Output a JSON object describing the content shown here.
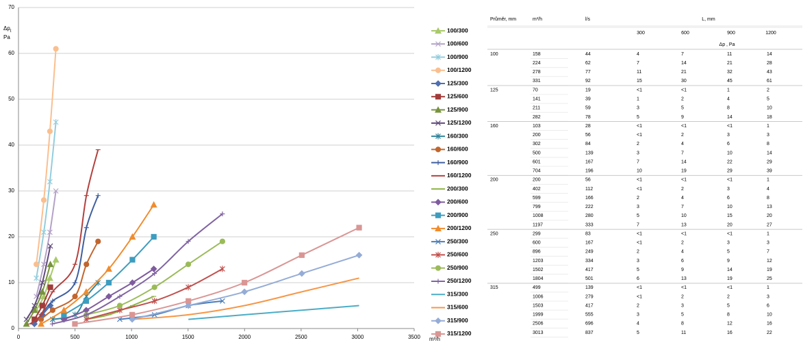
{
  "chart_data": {
    "type": "line",
    "smooth": true,
    "grid": true,
    "ylabel": "Δp",
    "ylabel_sub": "t",
    "ylabel_unit": "Pa",
    "xlabel": "m³/h",
    "xlim": [
      0,
      3500
    ],
    "xticks": [
      0,
      500,
      1000,
      1500,
      2000,
      2500,
      3000,
      3500
    ],
    "ylim": [
      0,
      70
    ],
    "yticks": [
      0,
      10,
      20,
      30,
      40,
      50,
      60,
      70
    ],
    "legend": "right",
    "series": [
      {
        "name": "100/300",
        "color": "#a9c96a",
        "marker": "triangle",
        "x": [
          158,
          224,
          278,
          331
        ],
        "values": [
          4,
          7,
          11,
          15
        ]
      },
      {
        "name": "100/600",
        "color": "#b3a2c7",
        "marker": "x",
        "x": [
          158,
          224,
          278,
          331
        ],
        "values": [
          7,
          14,
          21,
          30
        ]
      },
      {
        "name": "100/900",
        "color": "#93cddd",
        "marker": "star",
        "x": [
          158,
          224,
          278,
          331
        ],
        "values": [
          11,
          21,
          32,
          45
        ]
      },
      {
        "name": "100/1200",
        "color": "#fabf8f",
        "marker": "circle",
        "x": [
          158,
          224,
          278,
          331
        ],
        "values": [
          14,
          28,
          43,
          61
        ]
      },
      {
        "name": "125/300",
        "color": "#4f6fb0",
        "marker": "diamond",
        "x": [
          70,
          141,
          211,
          282
        ],
        "values": [
          null,
          1,
          3,
          5
        ]
      },
      {
        "name": "125/600",
        "color": "#a03c3a",
        "marker": "square",
        "x": [
          70,
          141,
          211,
          282
        ],
        "values": [
          null,
          2,
          5,
          9
        ]
      },
      {
        "name": "125/900",
        "color": "#77933c",
        "marker": "triangle",
        "x": [
          70,
          141,
          211,
          282
        ],
        "values": [
          1,
          4,
          8,
          14
        ]
      },
      {
        "name": "125/1200",
        "color": "#604a7b",
        "marker": "x",
        "x": [
          70,
          141,
          211,
          282
        ],
        "values": [
          2,
          5,
          10,
          18
        ]
      },
      {
        "name": "160/300",
        "color": "#31859c",
        "marker": "star",
        "x": [
          103,
          200,
          302,
          500,
          601,
          704
        ],
        "values": [
          null,
          null,
          2,
          3,
          7,
          10
        ]
      },
      {
        "name": "160/600",
        "color": "#c0662e",
        "marker": "circle",
        "x": [
          103,
          200,
          302,
          500,
          601,
          704
        ],
        "values": [
          null,
          2,
          4,
          7,
          14,
          19
        ]
      },
      {
        "name": "160/900",
        "color": "#3f5f9e",
        "marker": "plus",
        "x": [
          103,
          200,
          302,
          500,
          601,
          704
        ],
        "values": [
          null,
          3,
          6,
          10,
          22,
          29
        ]
      },
      {
        "name": "160/1200",
        "color": "#b3403d",
        "marker": "dash",
        "x": [
          103,
          200,
          302,
          500,
          601,
          704
        ],
        "values": [
          1,
          3,
          8,
          14,
          29,
          39
        ]
      },
      {
        "name": "200/300",
        "color": "#8db445",
        "marker": "dash",
        "x": [
          200,
          402,
          599,
          799,
          1008,
          1197
        ],
        "values": [
          null,
          null,
          2,
          3,
          5,
          7
        ]
      },
      {
        "name": "200/600",
        "color": "#7e5b9e",
        "marker": "diamond",
        "x": [
          200,
          402,
          599,
          799,
          1008,
          1197
        ],
        "values": [
          null,
          2,
          4,
          7,
          10,
          13
        ]
      },
      {
        "name": "200/900",
        "color": "#3d9dbf",
        "marker": "square",
        "x": [
          200,
          402,
          599,
          799,
          1008,
          1197
        ],
        "values": [
          null,
          3,
          6,
          10,
          15,
          20
        ]
      },
      {
        "name": "200/1200",
        "color": "#f08c2e",
        "marker": "triangle",
        "x": [
          200,
          402,
          599,
          799,
          1008,
          1197
        ],
        "values": [
          1,
          4,
          8,
          13,
          20,
          27
        ]
      },
      {
        "name": "250/300",
        "color": "#4a7ebb",
        "marker": "x",
        "x": [
          299,
          600,
          896,
          1203,
          1502,
          1804
        ],
        "values": [
          null,
          null,
          2,
          3,
          5,
          6
        ]
      },
      {
        "name": "250/600",
        "color": "#c0504d",
        "marker": "star",
        "x": [
          299,
          600,
          896,
          1203,
          1502,
          1804
        ],
        "values": [
          null,
          2,
          4,
          6,
          9,
          13
        ]
      },
      {
        "name": "250/900",
        "color": "#9bbb59",
        "marker": "circle",
        "x": [
          299,
          600,
          896,
          1203,
          1502,
          1804
        ],
        "values": [
          null,
          3,
          5,
          9,
          14,
          19
        ]
      },
      {
        "name": "250/1200",
        "color": "#8064a2",
        "marker": "plus",
        "x": [
          299,
          600,
          896,
          1203,
          1502,
          1804
        ],
        "values": [
          1,
          3,
          7,
          12,
          19,
          25
        ]
      },
      {
        "name": "315/300",
        "color": "#4bacc6",
        "marker": "none",
        "x": [
          499,
          1006,
          1503,
          1999,
          2506,
          3013
        ],
        "values": [
          null,
          null,
          2,
          3,
          4,
          5
        ]
      },
      {
        "name": "315/600",
        "color": "#f79646",
        "marker": "none",
        "x": [
          499,
          1006,
          1503,
          1999,
          2506,
          3013
        ],
        "values": [
          null,
          2,
          3,
          5,
          8,
          11
        ]
      },
      {
        "name": "315/900",
        "color": "#95acd6",
        "marker": "diamond",
        "x": [
          499,
          1006,
          1503,
          1999,
          2506,
          3013
        ],
        "values": [
          null,
          2,
          5,
          8,
          12,
          16
        ]
      },
      {
        "name": "315/1200",
        "color": "#d99694",
        "marker": "square",
        "x": [
          499,
          1006,
          1503,
          1999,
          2506,
          3013
        ],
        "values": [
          1,
          3,
          6,
          10,
          16,
          22
        ]
      }
    ]
  },
  "table": {
    "header": [
      "Průměr, mm",
      "m³/h",
      "l/s",
      "L, mm"
    ],
    "lengths": [
      "300",
      "600",
      "900",
      "1200"
    ],
    "unit": "Δp , Pa",
    "groups": [
      {
        "diameter": "100",
        "rows": [
          [
            "158",
            "44",
            "4",
            "7",
            "11",
            "14"
          ],
          [
            "224",
            "62",
            "7",
            "14",
            "21",
            "28"
          ],
          [
            "278",
            "77",
            "11",
            "21",
            "32",
            "43"
          ],
          [
            "331",
            "92",
            "15",
            "30",
            "45",
            "61"
          ]
        ]
      },
      {
        "diameter": "125",
        "rows": [
          [
            "70",
            "19",
            "<1",
            "<1",
            "1",
            "2"
          ],
          [
            "141",
            "39",
            "1",
            "2",
            "4",
            "5"
          ],
          [
            "211",
            "59",
            "3",
            "5",
            "8",
            "10"
          ],
          [
            "282",
            "78",
            "5",
            "9",
            "14",
            "18"
          ]
        ]
      },
      {
        "diameter": "160",
        "rows": [
          [
            "103",
            "28",
            "<1",
            "<1",
            "<1",
            "1"
          ],
          [
            "200",
            "56",
            "<1",
            "2",
            "3",
            "3"
          ],
          [
            "302",
            "84",
            "2",
            "4",
            "6",
            "8"
          ],
          [
            "500",
            "139",
            "3",
            "7",
            "10",
            "14"
          ],
          [
            "601",
            "167",
            "7",
            "14",
            "22",
            "29"
          ],
          [
            "704",
            "196",
            "10",
            "19",
            "29",
            "39"
          ]
        ]
      },
      {
        "diameter": "200",
        "rows": [
          [
            "200",
            "56",
            "<1",
            "<1",
            "<1",
            "1"
          ],
          [
            "402",
            "112",
            "<1",
            "2",
            "3",
            "4"
          ],
          [
            "599",
            "166",
            "2",
            "4",
            "6",
            "8"
          ],
          [
            "799",
            "222",
            "3",
            "7",
            "10",
            "13"
          ],
          [
            "1008",
            "280",
            "5",
            "10",
            "15",
            "20"
          ],
          [
            "1197",
            "333",
            "7",
            "13",
            "20",
            "27"
          ]
        ]
      },
      {
        "diameter": "250",
        "rows": [
          [
            "299",
            "83",
            "<1",
            "<1",
            "<1",
            "1"
          ],
          [
            "600",
            "167",
            "<1",
            "2",
            "3",
            "3"
          ],
          [
            "896",
            "249",
            "2",
            "4",
            "5",
            "7"
          ],
          [
            "1203",
            "334",
            "3",
            "6",
            "9",
            "12"
          ],
          [
            "1502",
            "417",
            "5",
            "9",
            "14",
            "19"
          ],
          [
            "1804",
            "501",
            "6",
            "13",
            "19",
            "25"
          ]
        ]
      },
      {
        "diameter": "315",
        "rows": [
          [
            "499",
            "139",
            "<1",
            "<1",
            "<1",
            "1"
          ],
          [
            "1006",
            "279",
            "<1",
            "2",
            "2",
            "3"
          ],
          [
            "1503",
            "417",
            "2",
            "3",
            "5",
            "6"
          ],
          [
            "1999",
            "555",
            "3",
            "5",
            "8",
            "10"
          ],
          [
            "2506",
            "696",
            "4",
            "8",
            "12",
            "16"
          ],
          [
            "3013",
            "837",
            "5",
            "11",
            "16",
            "22"
          ]
        ]
      }
    ]
  }
}
